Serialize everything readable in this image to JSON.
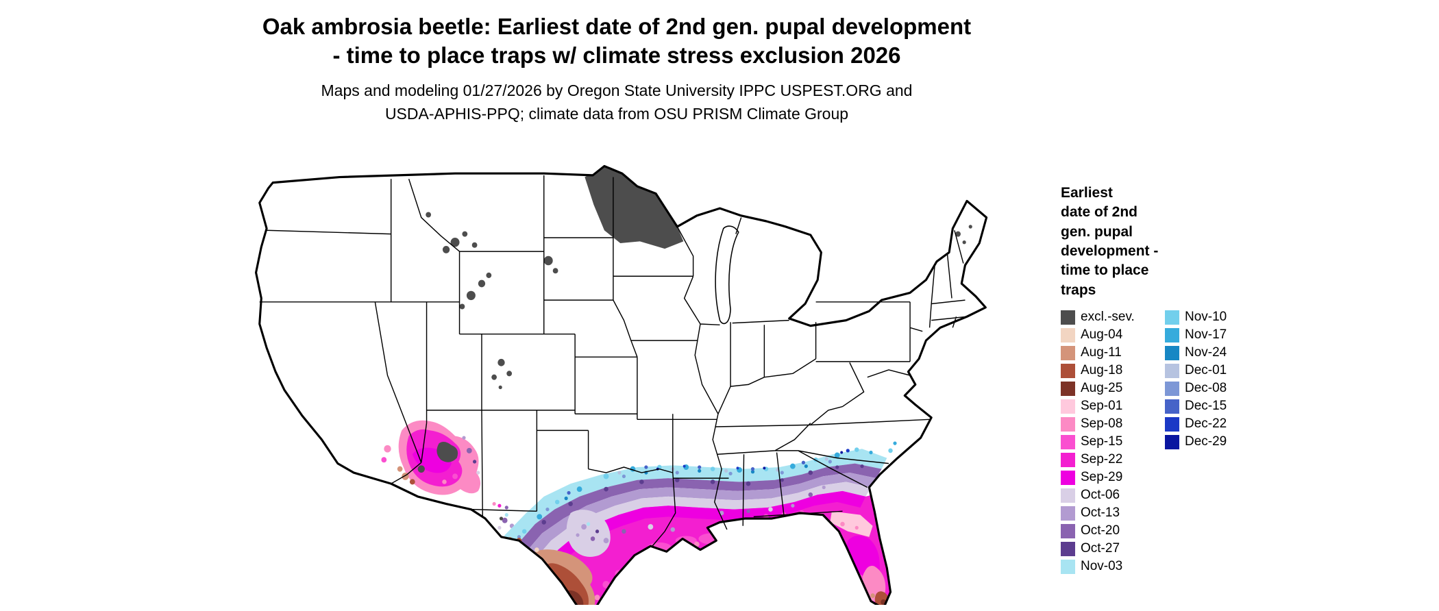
{
  "title": {
    "line1": "Oak ambrosia beetle: Earliest date of 2nd gen. pupal development",
    "line2": "- time to place traps w/ climate stress exclusion 2026"
  },
  "subtitle": {
    "line1": "Maps and modeling 01/27/2026 by Oregon State University IPPC USPEST.ORG and",
    "line2": "USDA-APHIS-PPQ; climate data from OSU PRISM Climate Group"
  },
  "legend": {
    "title_lines": [
      "Earliest",
      "date of 2nd",
      "gen. pupal",
      "development -",
      "time to place",
      "traps"
    ],
    "column1": [
      {
        "key": "excl",
        "label": "excl.-sev.",
        "color": "#4d4d4d"
      },
      {
        "key": "aug04",
        "label": "Aug-04",
        "color": "#f2d5c2"
      },
      {
        "key": "aug11",
        "label": "Aug-11",
        "color": "#d4947a"
      },
      {
        "key": "aug18",
        "label": "Aug-18",
        "color": "#ad4f38"
      },
      {
        "key": "aug25",
        "label": "Aug-25",
        "color": "#7d3327"
      },
      {
        "key": "sep01",
        "label": "Sep-01",
        "color": "#ffc9dd"
      },
      {
        "key": "sep08",
        "label": "Sep-08",
        "color": "#fc8ac4"
      },
      {
        "key": "sep15",
        "label": "Sep-15",
        "color": "#fa4fd0"
      },
      {
        "key": "sep22",
        "label": "Sep-22",
        "color": "#f31fd0"
      },
      {
        "key": "sep29",
        "label": "Sep-29",
        "color": "#ee00e0"
      },
      {
        "key": "oct06",
        "label": "Oct-06",
        "color": "#d9cfe6"
      },
      {
        "key": "oct13",
        "label": "Oct-13",
        "color": "#b29bd1"
      },
      {
        "key": "oct20",
        "label": "Oct-20",
        "color": "#8a63b0"
      },
      {
        "key": "oct27",
        "label": "Oct-27",
        "color": "#5c3d8f"
      },
      {
        "key": "nov03",
        "label": "Nov-03",
        "color": "#a8e4f2"
      }
    ],
    "column2": [
      {
        "key": "nov10",
        "label": "Nov-10",
        "color": "#72cfec"
      },
      {
        "key": "nov17",
        "label": "Nov-17",
        "color": "#36abdc"
      },
      {
        "key": "nov24",
        "label": "Nov-24",
        "color": "#1787c4"
      },
      {
        "key": "dec01",
        "label": "Dec-01",
        "color": "#b6c3e0"
      },
      {
        "key": "dec08",
        "label": "Dec-08",
        "color": "#7d97d6"
      },
      {
        "key": "dec15",
        "label": "Dec-15",
        "color": "#4663c8"
      },
      {
        "key": "dec22",
        "label": "Dec-22",
        "color": "#1b39c6"
      },
      {
        "key": "dec29",
        "label": "Dec-29",
        "color": "#0a16a0"
      }
    ]
  },
  "map": {
    "regions": [
      {
        "area": "northern Minnesota",
        "class": "excl.-sev."
      },
      {
        "area": "mountain patches in MT / WY / Black Hills / CO Rockies / New England",
        "class": "excl.-sev."
      },
      {
        "area": "central Arizona diagonal band",
        "class": "Sep-08 to Sep-29 with excl. and Aug/Oct specks"
      },
      {
        "area": "northern edge of southern band (central TX to Carolinas coast)",
        "class": "Nov-03 to Dec-29 speckled"
      },
      {
        "area": "middle of southern band across Gulf states",
        "class": "Oct-06 to Oct-27"
      },
      {
        "area": "south Texas, Gulf coast, most of Florida",
        "class": "Sep-15 to Sep-29"
      },
      {
        "area": "Rio Grande Valley and south Florida tip",
        "class": "Aug-04 to Aug-25"
      }
    ]
  }
}
